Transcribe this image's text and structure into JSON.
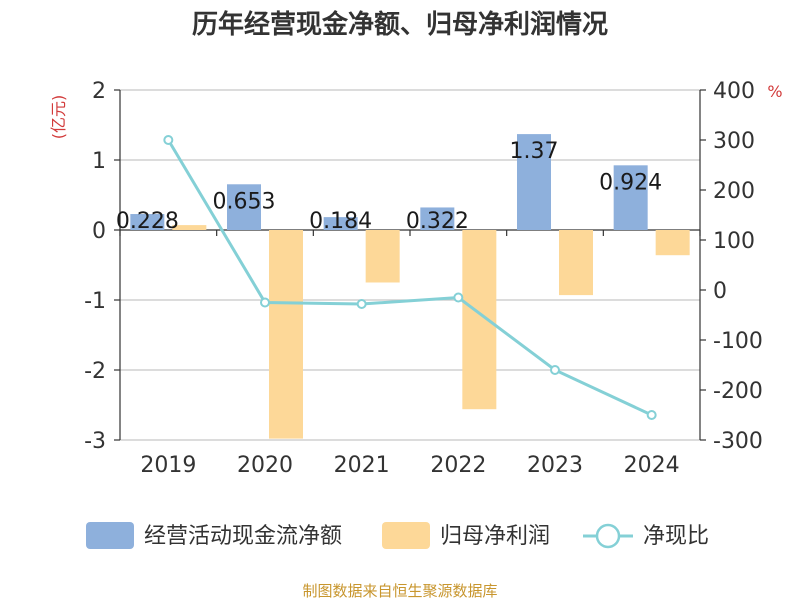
{
  "chart_data": {
    "type": "bar",
    "title": "历年经营现金净额、归母净利润情况",
    "categories": [
      "2019",
      "2020",
      "2021",
      "2022",
      "2023",
      "2024"
    ],
    "y_left": {
      "unit": "(亿元)",
      "range": [
        -3,
        2
      ],
      "ticks": [
        "2",
        "1",
        "0",
        "-1",
        "-2",
        "-3"
      ]
    },
    "y_right": {
      "unit": "%",
      "range": [
        -300,
        400
      ],
      "ticks": [
        "400",
        "300",
        "200",
        "100",
        "0",
        "-100",
        "-200",
        "-300"
      ]
    },
    "series": [
      {
        "name": "经营活动现金流净额",
        "type": "bar",
        "axis": "left",
        "color": "#8eb0dc",
        "values": [
          0.228,
          0.653,
          0.184,
          0.322,
          1.37,
          0.924
        ],
        "labels": [
          "0.228",
          "0.653",
          "0.184",
          "0.322",
          "1.37",
          "0.924"
        ]
      },
      {
        "name": "归母净利润",
        "type": "bar",
        "axis": "left",
        "color": "#fdd898",
        "values": [
          0.07,
          -2.98,
          -0.75,
          -2.56,
          -0.93,
          -0.36
        ]
      },
      {
        "name": "净现比",
        "type": "line",
        "axis": "right",
        "color": "#84d0d6",
        "values": [
          300,
          -25,
          -28,
          -15,
          -160,
          -250
        ]
      }
    ],
    "source": "制图数据来自恒生聚源数据库",
    "colors": {
      "title": "#333333",
      "unit": "#d23a3a",
      "source": "#c8962e",
      "grid": "#c8c8c8"
    }
  }
}
